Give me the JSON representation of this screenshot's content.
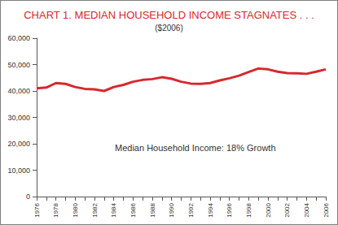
{
  "chart_data": {
    "type": "line",
    "title": "CHART 1. MEDIAN HOUSEHOLD INCOME STAGNATES . . .",
    "subtitle": "($2006)",
    "annotation": "Median Household Income: 18% Growth",
    "categories": [
      "1976",
      null,
      "1978",
      null,
      "1980",
      null,
      "1982",
      null,
      "1984",
      null,
      "1986",
      null,
      "1988",
      null,
      "1990",
      null,
      "1992",
      null,
      "1994",
      null,
      "1996",
      null,
      "1998",
      null,
      "2000",
      null,
      "2002",
      null,
      "2004",
      null,
      "2006"
    ],
    "values": [
      41000,
      41300,
      43000,
      42700,
      41500,
      40800,
      40600,
      40000,
      41500,
      42300,
      43500,
      44200,
      44500,
      45200,
      44600,
      43500,
      42800,
      42700,
      43000,
      44000,
      44800,
      45800,
      47200,
      48500,
      48200,
      47300,
      46800,
      46700,
      46500,
      47300,
      48200
    ],
    "color": "#d7282f",
    "ylim": [
      0,
      60000
    ],
    "yticks": [
      0,
      {
        "value": 10000,
        "label": "10,000"
      },
      {
        "value": 20000,
        "label": "20,000"
      },
      {
        "value": 30000,
        "label": "30,000"
      },
      {
        "value": 40000,
        "label": "40,000"
      },
      {
        "value": 50000,
        "label": "50,000"
      },
      {
        "value": 60000,
        "label": "60,000"
      }
    ],
    "grid": false
  }
}
